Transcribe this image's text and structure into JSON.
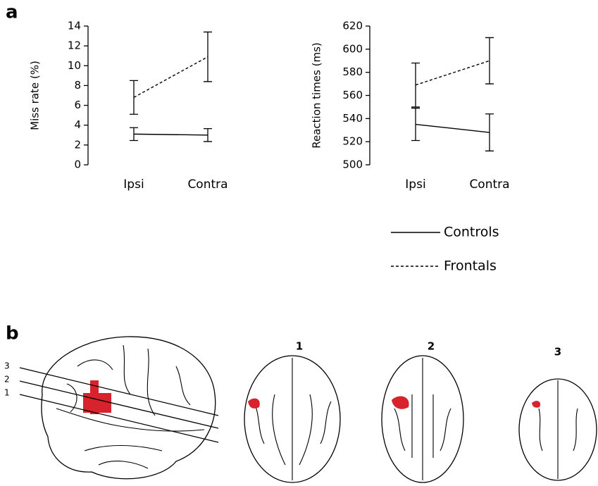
{
  "panels": [
    "a",
    "b"
  ],
  "slice_lines": [
    "3",
    "2",
    "1"
  ],
  "slice_titles": [
    "1",
    "2",
    "3"
  ],
  "chart_data": [
    {
      "type": "line",
      "ylabel": "Miss rate (%)",
      "categories": [
        "Ipsi",
        "Contra"
      ],
      "ylim": [
        0,
        14
      ],
      "yticks": [
        0,
        2,
        4,
        6,
        8,
        10,
        12,
        14
      ],
      "series": [
        {
          "color": "#000000",
          "dashed": false,
          "values": [
            3.1,
            3.0
          ],
          "errors": [
            0.65,
            0.65
          ]
        },
        {
          "color": "#000000",
          "dashed": true,
          "values": [
            6.8,
            10.9
          ],
          "errors": [
            1.7,
            2.5
          ]
        }
      ]
    },
    {
      "type": "line",
      "ylabel": "Reaction times (ms)",
      "categories": [
        "Ipsi",
        "Contra"
      ],
      "ylim": [
        500,
        620
      ],
      "yticks": [
        500,
        520,
        540,
        560,
        580,
        600,
        620
      ],
      "series": [
        {
          "name": "Controls",
          "color": "#000000",
          "dashed": false,
          "values": [
            535,
            528
          ],
          "errors": [
            14,
            16
          ]
        },
        {
          "name": "Frontals",
          "color": "#000000",
          "dashed": true,
          "values": [
            569,
            590
          ],
          "errors": [
            19,
            20
          ]
        }
      ]
    }
  ]
}
